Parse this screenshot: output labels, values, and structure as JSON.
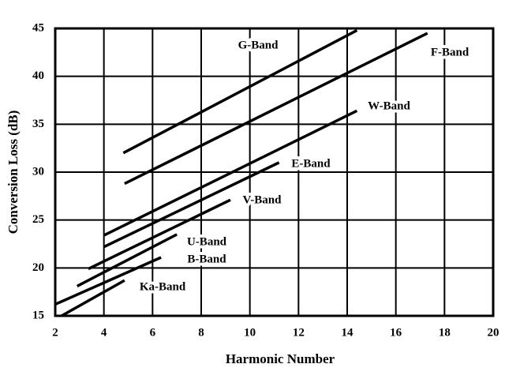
{
  "chart_data": {
    "type": "line",
    "x_label": "Harmonic Number",
    "y_label": "Conversion Loss (dB)",
    "xlim": [
      2,
      20
    ],
    "xticks": [
      2,
      4,
      6,
      8,
      10,
      12,
      14,
      16,
      18,
      20
    ],
    "ylim": [
      15,
      45
    ],
    "yticks": [
      15,
      20,
      25,
      30,
      35,
      40,
      45
    ],
    "grid": true,
    "color": "#000000",
    "series": [
      {
        "name": "G-Band",
        "x": [
          4.8,
          14.4
        ],
        "values": [
          32,
          44.8
        ]
      },
      {
        "name": "F-Band",
        "x": [
          4.85,
          17.3
        ],
        "values": [
          28.8,
          44.5
        ]
      },
      {
        "name": "W-Band",
        "x": [
          4.0,
          14.4
        ],
        "values": [
          23.4,
          36.4
        ]
      },
      {
        "name": "E-Band",
        "x": [
          4.0,
          11.2
        ],
        "values": [
          22.2,
          31.0
        ]
      },
      {
        "name": "V-Band",
        "x": [
          3.36,
          9.2
        ],
        "values": [
          19.9,
          27.1
        ]
      },
      {
        "name": "U-Band",
        "x": [
          2.9,
          7.0
        ],
        "values": [
          18.1,
          23.5
        ]
      },
      {
        "name": "B-Band",
        "x": [
          2.0,
          6.35
        ],
        "values": [
          16.2,
          21.1
        ]
      },
      {
        "name": "Ka-Band",
        "x": [
          2.26,
          4.85
        ],
        "values": [
          15,
          18.7
        ]
      }
    ]
  }
}
